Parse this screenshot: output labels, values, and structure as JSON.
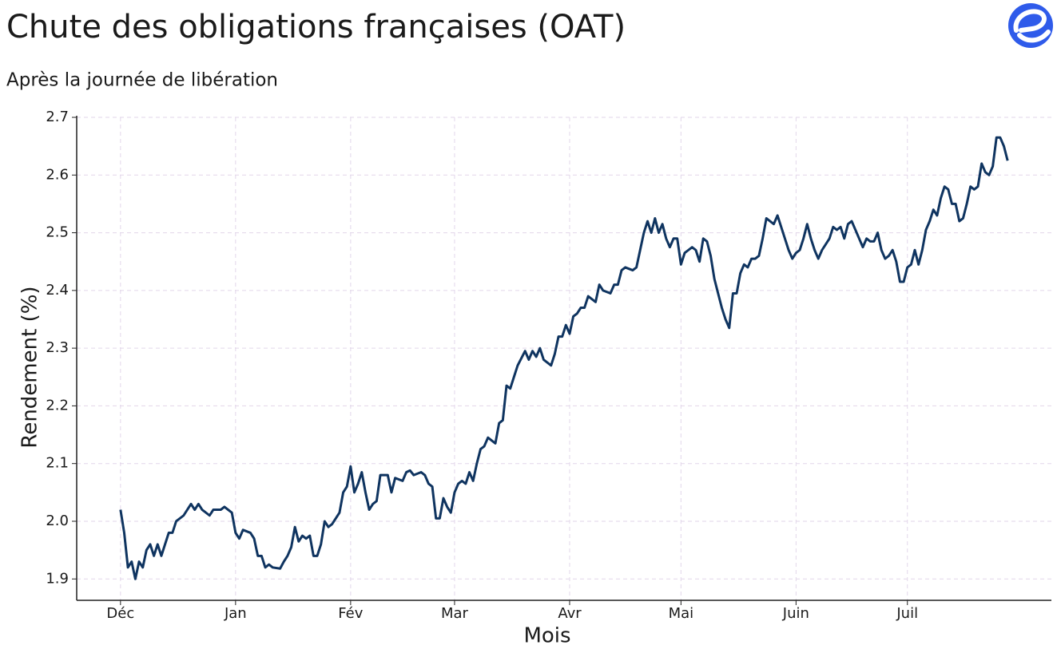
{
  "chart_data": {
    "type": "line",
    "title": "Chute des obligations françaises (OAT)",
    "subtitle": "Après la journée de libération",
    "x_label": "Mois",
    "y_label": "Rendement (%)",
    "xlim": [
      -11.8,
      250.8
    ],
    "ylim": [
      1.863,
      2.7
    ],
    "xticks": [
      {
        "value": 0,
        "label": "Déc"
      },
      {
        "value": 31,
        "label": "Jan"
      },
      {
        "value": 62,
        "label": "Fév"
      },
      {
        "value": 90,
        "label": "Mar"
      },
      {
        "value": 121,
        "label": "Avr"
      },
      {
        "value": 151,
        "label": "Mai"
      },
      {
        "value": 182,
        "label": "Juin"
      },
      {
        "value": 212,
        "label": "Juil"
      }
    ],
    "yticks": [
      1.9,
      {
        "value": 2,
        "label": "2.0"
      },
      2.1,
      2.2,
      2.3,
      2.4,
      2.5,
      2.6,
      2.7
    ],
    "grid": true,
    "series": [
      {
        "color": "#0f3460",
        "x": [
          0,
          1,
          2,
          3,
          4,
          5,
          6,
          7,
          8,
          9,
          10,
          11,
          12,
          13,
          14,
          15,
          17,
          19,
          20,
          21,
          22,
          24,
          25,
          27,
          28,
          30,
          31,
          32,
          33,
          35,
          36,
          37,
          38,
          39,
          40,
          41,
          43,
          44,
          45,
          46,
          47,
          48,
          49,
          50,
          51,
          52,
          53,
          54,
          55,
          56,
          57,
          59,
          60,
          61,
          62,
          63,
          64,
          65,
          66,
          67,
          68,
          69,
          70,
          72,
          73,
          74,
          76,
          77,
          78,
          79,
          81,
          82,
          83,
          84,
          85,
          86,
          87,
          88,
          89,
          90,
          91,
          92,
          93,
          94,
          95,
          96,
          97,
          98,
          99,
          100,
          101,
          102,
          103,
          104,
          105,
          106,
          107,
          109,
          110,
          111,
          112,
          113,
          114,
          116,
          117,
          118,
          119,
          120,
          121,
          122,
          123,
          124,
          125,
          126,
          128,
          129,
          130,
          132,
          133,
          134,
          135,
          136,
          138,
          139,
          140,
          141,
          142,
          143,
          144,
          145,
          146,
          147,
          148,
          149,
          150,
          151,
          152,
          153,
          154,
          155,
          156,
          157,
          158,
          159,
          160,
          161,
          162,
          163,
          164,
          165,
          166,
          167,
          168,
          169,
          170,
          171,
          172,
          173,
          174,
          175,
          176,
          177,
          178,
          179,
          180,
          181,
          182,
          183,
          184,
          185,
          186,
          187,
          188,
          189,
          190,
          191,
          192,
          193,
          194,
          195,
          196,
          197,
          198,
          199,
          200,
          201,
          202,
          203,
          204,
          205,
          206,
          207,
          208,
          209,
          210,
          211,
          212,
          213,
          214,
          215,
          216,
          217,
          218,
          219,
          220,
          221,
          222,
          223,
          224,
          225,
          226,
          227,
          228,
          229,
          230,
          231,
          232,
          233,
          234,
          235,
          236,
          237,
          238,
          239
        ],
        "values": [
          2.02,
          1.98,
          1.92,
          1.93,
          1.9,
          1.93,
          1.92,
          1.95,
          1.96,
          1.94,
          1.96,
          1.94,
          1.96,
          1.98,
          1.98,
          2.0,
          2.01,
          2.03,
          2.02,
          2.03,
          2.02,
          2.01,
          2.02,
          2.02,
          2.025,
          2.015,
          1.98,
          1.97,
          1.985,
          1.98,
          1.97,
          1.94,
          1.94,
          1.92,
          1.925,
          1.92,
          1.918,
          1.93,
          1.94,
          1.955,
          1.99,
          1.965,
          1.975,
          1.97,
          1.975,
          1.94,
          1.94,
          1.96,
          2.0,
          1.99,
          1.995,
          2.015,
          2.05,
          2.06,
          2.095,
          2.05,
          2.065,
          2.085,
          2.05,
          2.02,
          2.03,
          2.035,
          2.08,
          2.08,
          2.05,
          2.075,
          2.07,
          2.085,
          2.088,
          2.08,
          2.085,
          2.08,
          2.065,
          2.06,
          2.005,
          2.005,
          2.04,
          2.025,
          2.015,
          2.05,
          2.065,
          2.07,
          2.065,
          2.085,
          2.07,
          2.1,
          2.125,
          2.13,
          2.145,
          2.14,
          2.135,
          2.17,
          2.175,
          2.235,
          2.23,
          2.25,
          2.27,
          2.295,
          2.28,
          2.295,
          2.285,
          2.3,
          2.28,
          2.27,
          2.29,
          2.32,
          2.32,
          2.34,
          2.325,
          2.355,
          2.36,
          2.37,
          2.37,
          2.39,
          2.38,
          2.41,
          2.4,
          2.395,
          2.41,
          2.41,
          2.435,
          2.44,
          2.435,
          2.44,
          2.47,
          2.5,
          2.52,
          2.5,
          2.525,
          2.5,
          2.515,
          2.49,
          2.475,
          2.49,
          2.49,
          2.445,
          2.465,
          2.47,
          2.475,
          2.47,
          2.45,
          2.49,
          2.485,
          2.46,
          2.42,
          2.395,
          2.37,
          2.35,
          2.335,
          2.395,
          2.395,
          2.43,
          2.445,
          2.44,
          2.455,
          2.455,
          2.46,
          2.49,
          2.525,
          2.52,
          2.515,
          2.53,
          2.51,
          2.49,
          2.47,
          2.455,
          2.465,
          2.47,
          2.49,
          2.515,
          2.49,
          2.47,
          2.455,
          2.47,
          2.48,
          2.49,
          2.51,
          2.505,
          2.51,
          2.49,
          2.515,
          2.52,
          2.505,
          2.49,
          2.475,
          2.49,
          2.485,
          2.485,
          2.5,
          2.47,
          2.455,
          2.46,
          2.47,
          2.45,
          2.415,
          2.415,
          2.44,
          2.445,
          2.47,
          2.445,
          2.47,
          2.505,
          2.52,
          2.54,
          2.53,
          2.56,
          2.58,
          2.575,
          2.55,
          2.55,
          2.52,
          2.525,
          2.55,
          2.58,
          2.575,
          2.58,
          2.62,
          2.605,
          2.6,
          2.615,
          2.665,
          2.665,
          2.65,
          2.625
        ]
      }
    ]
  }
}
